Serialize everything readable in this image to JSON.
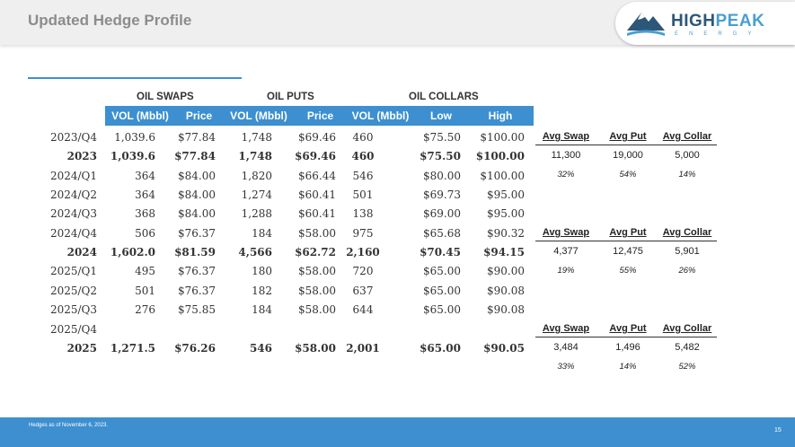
{
  "header": {
    "title": "Updated Hedge Profile"
  },
  "logo": {
    "name_part1": "HIGH",
    "name_part2": "PEAK",
    "sub": "ENERGY"
  },
  "groups": {
    "swaps": "OIL SWAPS",
    "puts": "OIL PUTS",
    "collars": "OIL COLLARS"
  },
  "columns": [
    "VOL (Mbbl)",
    "Price",
    "VOL (Mbbl)",
    "Price",
    "VOL (Mbbl)",
    "Low",
    "High"
  ],
  "rows": [
    {
      "period": "2023/Q4",
      "v": [
        "1,039.6",
        "$77.84",
        "1,748",
        "$69.46",
        "460",
        "$75.50",
        "$100.00"
      ],
      "bold": false
    },
    {
      "period": "2023",
      "v": [
        "1,039.6",
        "$77.84",
        "1,748",
        "$69.46",
        "460",
        "$75.50",
        "$100.00"
      ],
      "bold": true
    },
    {
      "period": "2024/Q1",
      "v": [
        "364",
        "$84.00",
        "1,820",
        "$66.44",
        "546",
        "$80.00",
        "$100.00"
      ],
      "bold": false
    },
    {
      "period": "2024/Q2",
      "v": [
        "364",
        "$84.00",
        "1,274",
        "$60.41",
        "501",
        "$69.73",
        "$95.00"
      ],
      "bold": false
    },
    {
      "period": "2024/Q3",
      "v": [
        "368",
        "$84.00",
        "1,288",
        "$60.41",
        "138",
        "$69.00",
        "$95.00"
      ],
      "bold": false
    },
    {
      "period": "2024/Q4",
      "v": [
        "506",
        "$76.37",
        "184",
        "$58.00",
        "975",
        "$65.68",
        "$90.32"
      ],
      "bold": false
    },
    {
      "period": "2024",
      "v": [
        "1,602.0",
        "$81.59",
        "4,566",
        "$62.72",
        "2,160",
        "$70.45",
        "$94.15"
      ],
      "bold": true
    },
    {
      "period": "2025/Q1",
      "v": [
        "495",
        "$76.37",
        "180",
        "$58.00",
        "720",
        "$65.00",
        "$90.00"
      ],
      "bold": false
    },
    {
      "period": "2025/Q2",
      "v": [
        "501",
        "$76.37",
        "182",
        "$58.00",
        "637",
        "$65.00",
        "$90.08"
      ],
      "bold": false
    },
    {
      "period": "2025/Q3",
      "v": [
        "276",
        "$75.85",
        "184",
        "$58.00",
        "644",
        "$65.00",
        "$90.08"
      ],
      "bold": false
    },
    {
      "period": "2025/Q4",
      "v": [
        "",
        "",
        "",
        "",
        "",
        "",
        ""
      ],
      "bold": false
    },
    {
      "period": "2025",
      "v": [
        "1,271.5",
        "$76.26",
        "546",
        "$58.00",
        "2,001",
        "$65.00",
        "$90.05"
      ],
      "bold": true
    }
  ],
  "summaries": [
    {
      "headers": [
        "Avg Swap",
        "Avg Put",
        "Avg Collar"
      ],
      "values": [
        "11,300",
        "19,000",
        "5,000"
      ],
      "pcts": [
        "32%",
        "54%",
        "14%"
      ]
    },
    {
      "headers": [
        "Avg Swap",
        "Avg Put",
        "Avg Collar"
      ],
      "values": [
        "4,377",
        "12,475",
        "5,901"
      ],
      "pcts": [
        "19%",
        "55%",
        "26%"
      ]
    },
    {
      "headers": [
        "Avg Swap",
        "Avg Put",
        "Avg Collar"
      ],
      "values": [
        "3,484",
        "1,496",
        "5,482"
      ],
      "pcts": [
        "33%",
        "14%",
        "52%"
      ]
    }
  ],
  "footer": {
    "note": "Hedges as of November 6, 2023.",
    "page": "15"
  }
}
